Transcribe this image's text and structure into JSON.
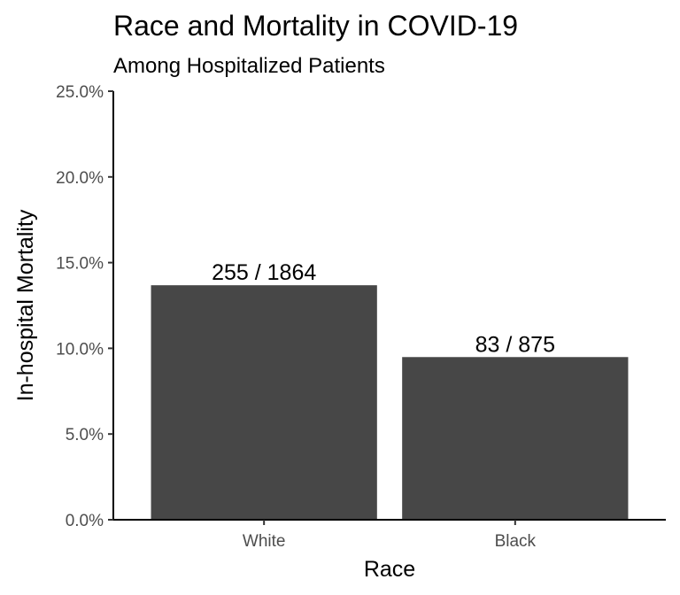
{
  "chart_data": {
    "type": "bar",
    "title": "Race and Mortality in COVID-19",
    "subtitle": "Among Hospitalized Patients",
    "xlabel": "Race",
    "ylabel": "In-hospital Mortality",
    "categories": [
      "White",
      "Black"
    ],
    "values": [
      13.68,
      9.49
    ],
    "value_unit": "%",
    "data_labels": [
      "255 / 1864",
      "83 / 875"
    ],
    "ylim": [
      0,
      25
    ],
    "y_ticks": [
      0,
      5,
      10,
      15,
      20,
      25
    ],
    "y_tick_labels": [
      "0.0%",
      "5.0%",
      "10.0%",
      "15.0%",
      "20.0%",
      "25.0%"
    ],
    "grid": false,
    "bar_color": "#474747"
  }
}
